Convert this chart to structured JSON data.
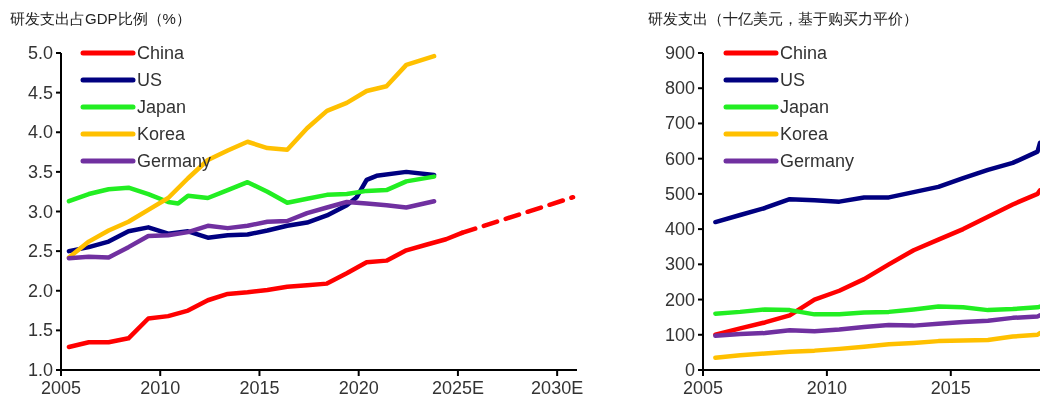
{
  "chart_data": [
    {
      "type": "line",
      "title": "研发支出占GDP比例（%）",
      "legend": "top left",
      "xlim": [
        2005,
        2031
      ],
      "xticks": [
        2005,
        2010,
        2015,
        2020,
        {
          "value": 2025,
          "label": "2025E"
        },
        {
          "value": 2030,
          "label": "2030E"
        }
      ],
      "ylim": [
        1.0,
        5.0
      ],
      "yticks": [
        {
          "value": 1,
          "label": "1.0"
        },
        {
          "value": 1.5,
          "label": "1.5"
        },
        {
          "value": 2,
          "label": "2.0"
        },
        {
          "value": 2.5,
          "label": "2.5"
        },
        {
          "value": 3,
          "label": "3.0"
        },
        {
          "value": 3.5,
          "label": "3.5"
        },
        {
          "value": 4,
          "label": "4.0"
        },
        {
          "value": 4.5,
          "label": "4.5"
        },
        {
          "value": 5,
          "label": "5.0"
        }
      ],
      "series": [
        {
          "name": "China",
          "color": "#ff0000",
          "line_style": "solid",
          "x": [
            2005.4,
            2006.4,
            2007.4,
            2008.4,
            2009.4,
            2010.4,
            2011.4,
            2012.4,
            2013.4,
            2014.4,
            2015.4,
            2016.4,
            2017.4,
            2018.4,
            2019.4,
            2020.4,
            2021.4,
            2022.4,
            2023.4,
            2024.4,
            2025.2
          ],
          "values": [
            1.29,
            1.35,
            1.35,
            1.4,
            1.65,
            1.68,
            1.75,
            1.88,
            1.96,
            1.98,
            2.01,
            2.05,
            2.07,
            2.09,
            2.22,
            2.36,
            2.38,
            2.51,
            2.58,
            2.65,
            2.73
          ]
        },
        {
          "name": "US",
          "color": "#000080",
          "line_style": "solid",
          "x": [
            2005.4,
            2006.4,
            2007.4,
            2008.4,
            2009.4,
            2010.4,
            2011.4,
            2012.4,
            2013.4,
            2014.4,
            2015.4,
            2016.4,
            2017.4,
            2018.4,
            2019.4,
            2019.9,
            2020.4,
            2020.9,
            2022.4,
            2023.8
          ],
          "values": [
            2.5,
            2.55,
            2.62,
            2.75,
            2.8,
            2.72,
            2.75,
            2.67,
            2.7,
            2.71,
            2.76,
            2.82,
            2.86,
            2.95,
            3.08,
            3.18,
            3.4,
            3.45,
            3.5,
            3.46
          ]
        },
        {
          "name": "Japan",
          "color": "#22ee22",
          "line_style": "solid",
          "x": [
            2005.4,
            2006.4,
            2007.4,
            2008.4,
            2009.4,
            2010.4,
            2010.9,
            2011.4,
            2012.4,
            2013.4,
            2014.4,
            2015.4,
            2016.4,
            2017.4,
            2018.4,
            2019.4,
            2020.4,
            2021.4,
            2022.4,
            2023.8
          ],
          "values": [
            3.13,
            3.22,
            3.28,
            3.3,
            3.22,
            3.12,
            3.1,
            3.2,
            3.17,
            3.27,
            3.37,
            3.25,
            3.11,
            3.16,
            3.21,
            3.22,
            3.26,
            3.27,
            3.38,
            3.44
          ]
        },
        {
          "name": "Korea",
          "color": "#ffc000",
          "line_style": "solid",
          "x": [
            2005.4,
            2006.4,
            2007.4,
            2008.4,
            2009.4,
            2010.4,
            2011.4,
            2012.4,
            2013.4,
            2014.4,
            2015.4,
            2016.4,
            2017.4,
            2018.4,
            2019.4,
            2020.4,
            2021.4,
            2022.4,
            2023.8
          ],
          "values": [
            2.42,
            2.62,
            2.76,
            2.87,
            3.02,
            3.17,
            3.42,
            3.65,
            3.77,
            3.88,
            3.8,
            3.78,
            4.05,
            4.27,
            4.37,
            4.52,
            4.58,
            4.85,
            4.96
          ]
        },
        {
          "name": "Germany",
          "color": "#7030a0",
          "line_style": "solid",
          "x": [
            2005.4,
            2006.4,
            2007.4,
            2008.4,
            2009.4,
            2010.4,
            2011.4,
            2012.4,
            2013.4,
            2014.4,
            2015.4,
            2016.4,
            2017.4,
            2018.4,
            2019.4,
            2020.4,
            2021.4,
            2022.4,
            2023.8
          ],
          "values": [
            2.41,
            2.43,
            2.42,
            2.55,
            2.69,
            2.7,
            2.74,
            2.82,
            2.79,
            2.82,
            2.87,
            2.88,
            2.98,
            3.05,
            3.12,
            3.1,
            3.08,
            3.05,
            3.13
          ]
        },
        {
          "color": "#ff0000",
          "line_style": "dashed",
          "x": [
            2025.2,
            2030.8
          ],
          "values": [
            2.73,
            3.18
          ]
        }
      ]
    },
    {
      "type": "line",
      "title": "研发支出（十亿美元，基于购买力平价）",
      "legend": "top left",
      "xlim": [
        2005,
        2018.6
      ],
      "xticks": [
        2005,
        2010,
        2015
      ],
      "ylim": [
        0,
        900
      ],
      "yticks": [
        0,
        100,
        200,
        300,
        400,
        500,
        600,
        700,
        800,
        900
      ],
      "series": [
        {
          "name": "China",
          "color": "#ff0000",
          "line_style": "solid",
          "x": [
            2005.5,
            2006.5,
            2007.5,
            2008.5,
            2009.5,
            2010.5,
            2011.5,
            2012.5,
            2013.5,
            2014.5,
            2015.5,
            2016.5,
            2017.5,
            2018.5,
            2018.6
          ],
          "values": [
            100,
            118,
            135,
            155,
            200,
            225,
            258,
            300,
            340,
            370,
            400,
            435,
            470,
            500,
            510
          ]
        },
        {
          "name": "US",
          "color": "#000080",
          "line_style": "solid",
          "x": [
            2005.5,
            2006.5,
            2007.5,
            2008.5,
            2009.5,
            2010.5,
            2011.5,
            2012.5,
            2013.5,
            2014.5,
            2015.5,
            2016.5,
            2017.5,
            2018.5,
            2018.6
          ],
          "values": [
            420,
            440,
            460,
            485,
            482,
            478,
            490,
            490,
            505,
            520,
            545,
            568,
            588,
            620,
            645
          ]
        },
        {
          "name": "Japan",
          "color": "#22ee22",
          "line_style": "solid",
          "x": [
            2005.5,
            2006.5,
            2007.5,
            2008.5,
            2009.5,
            2010.5,
            2011.5,
            2012.5,
            2013.5,
            2014.5,
            2015.5,
            2016.5,
            2017.5,
            2018.5,
            2018.6
          ],
          "values": [
            160,
            165,
            172,
            170,
            158,
            158,
            163,
            165,
            172,
            180,
            178,
            170,
            173,
            178,
            180
          ]
        },
        {
          "name": "Korea",
          "color": "#ffc000",
          "line_style": "solid",
          "x": [
            2005.5,
            2006.5,
            2007.5,
            2008.5,
            2009.5,
            2010.5,
            2011.5,
            2012.5,
            2013.5,
            2014.5,
            2015.5,
            2016.5,
            2017.5,
            2018.5,
            2018.6
          ],
          "values": [
            35,
            42,
            47,
            52,
            55,
            60,
            66,
            73,
            77,
            82,
            84,
            85,
            95,
            100,
            105
          ]
        },
        {
          "name": "Germany",
          "color": "#7030a0",
          "line_style": "solid",
          "x": [
            2005.5,
            2006.5,
            2007.5,
            2008.5,
            2009.5,
            2010.5,
            2011.5,
            2012.5,
            2013.5,
            2014.5,
            2015.5,
            2016.5,
            2017.5,
            2018.5,
            2018.6
          ],
          "values": [
            97,
            102,
            105,
            113,
            110,
            115,
            122,
            128,
            126,
            131,
            136,
            140,
            148,
            152,
            155
          ]
        }
      ]
    }
  ]
}
